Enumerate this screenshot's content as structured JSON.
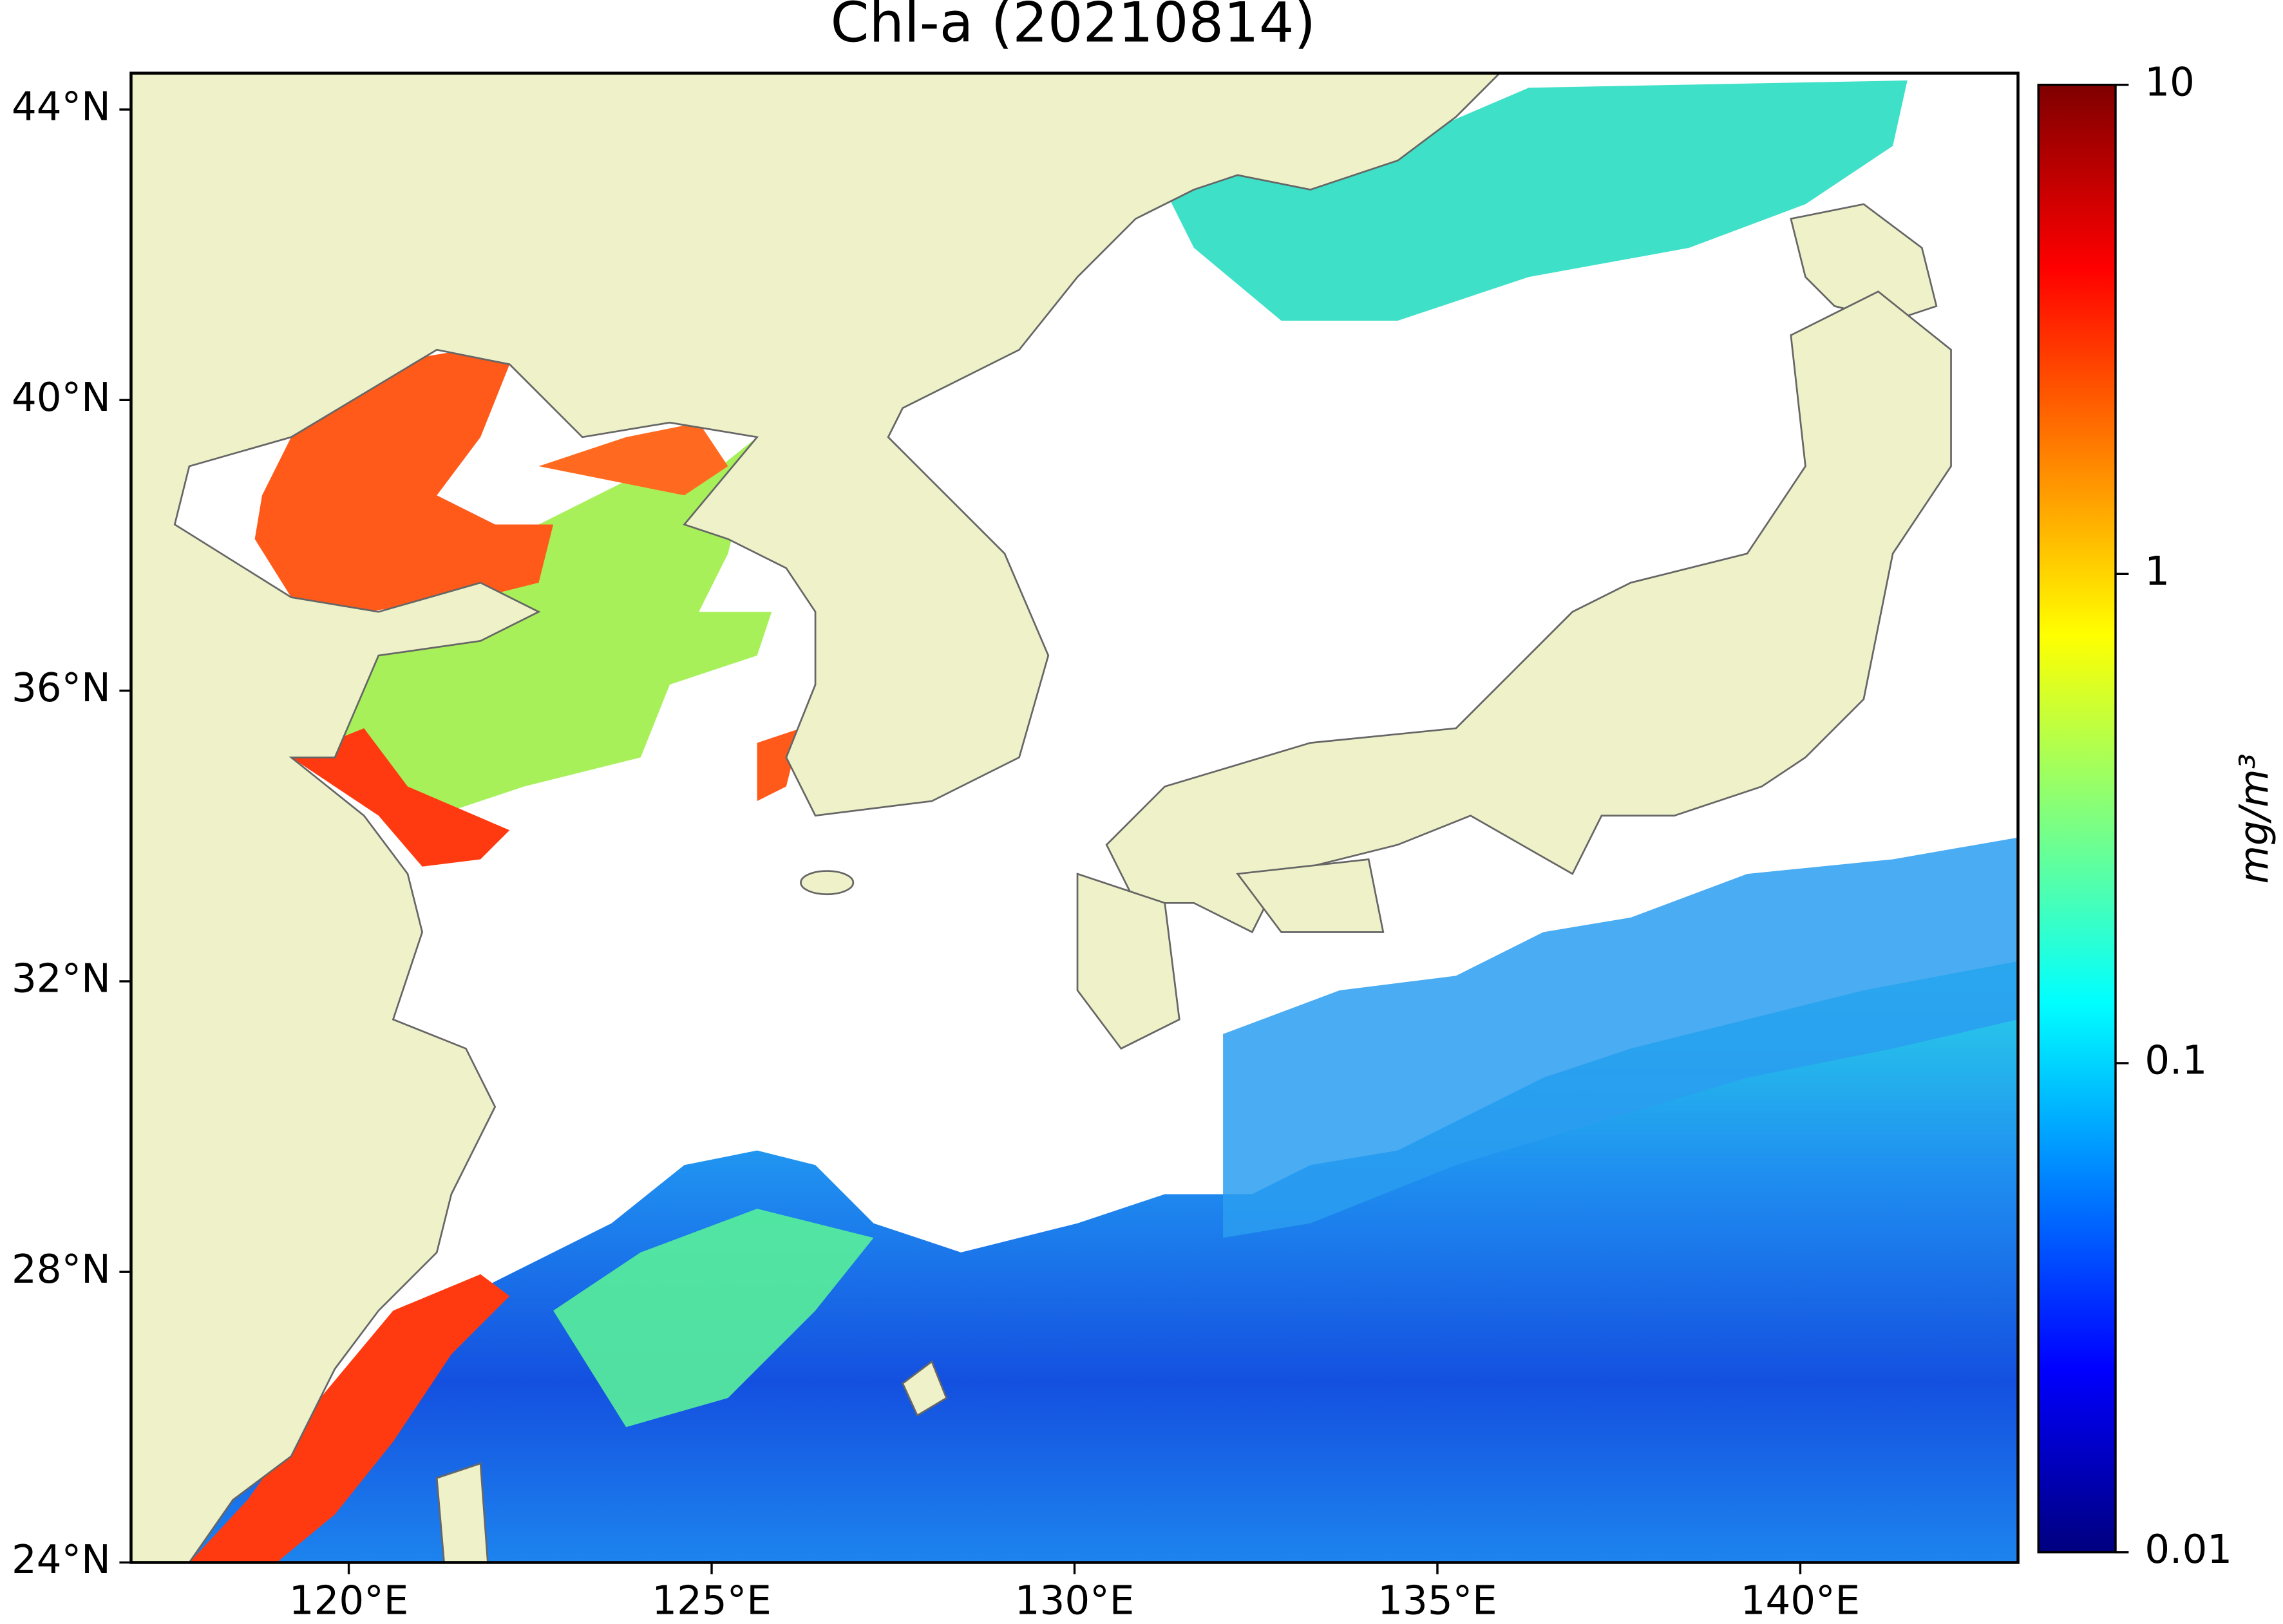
{
  "chart_data": {
    "type": "map",
    "title": "Chl-a (20210814)",
    "xlim": [
      117,
      143
    ],
    "ylim": [
      24,
      44.5
    ],
    "xticks": [
      {
        "value": 120,
        "label": "120°E"
      },
      {
        "value": 125,
        "label": "125°E"
      },
      {
        "value": 130,
        "label": "130°E"
      },
      {
        "value": 135,
        "label": "135°E"
      },
      {
        "value": 140,
        "label": "140°E"
      }
    ],
    "yticks": [
      {
        "value": 24,
        "label": "24°N"
      },
      {
        "value": 28,
        "label": "28°N"
      },
      {
        "value": 32,
        "label": "32°N"
      },
      {
        "value": 36,
        "label": "36°N"
      },
      {
        "value": 40,
        "label": "40°N"
      },
      {
        "value": 44,
        "label": "44°N"
      }
    ],
    "colorbar": {
      "label": "mg/m³",
      "clim": [
        0.01,
        10
      ],
      "ticks": [
        0.01,
        0.1,
        1,
        10
      ],
      "log_scale": true,
      "colormap": [
        "#00007f",
        "#0000ff",
        "#007fff",
        "#00ffff",
        "#7fff7f",
        "#ffff00",
        "#ff7f00",
        "#ff0000",
        "#7f0000"
      ]
    }
  }
}
